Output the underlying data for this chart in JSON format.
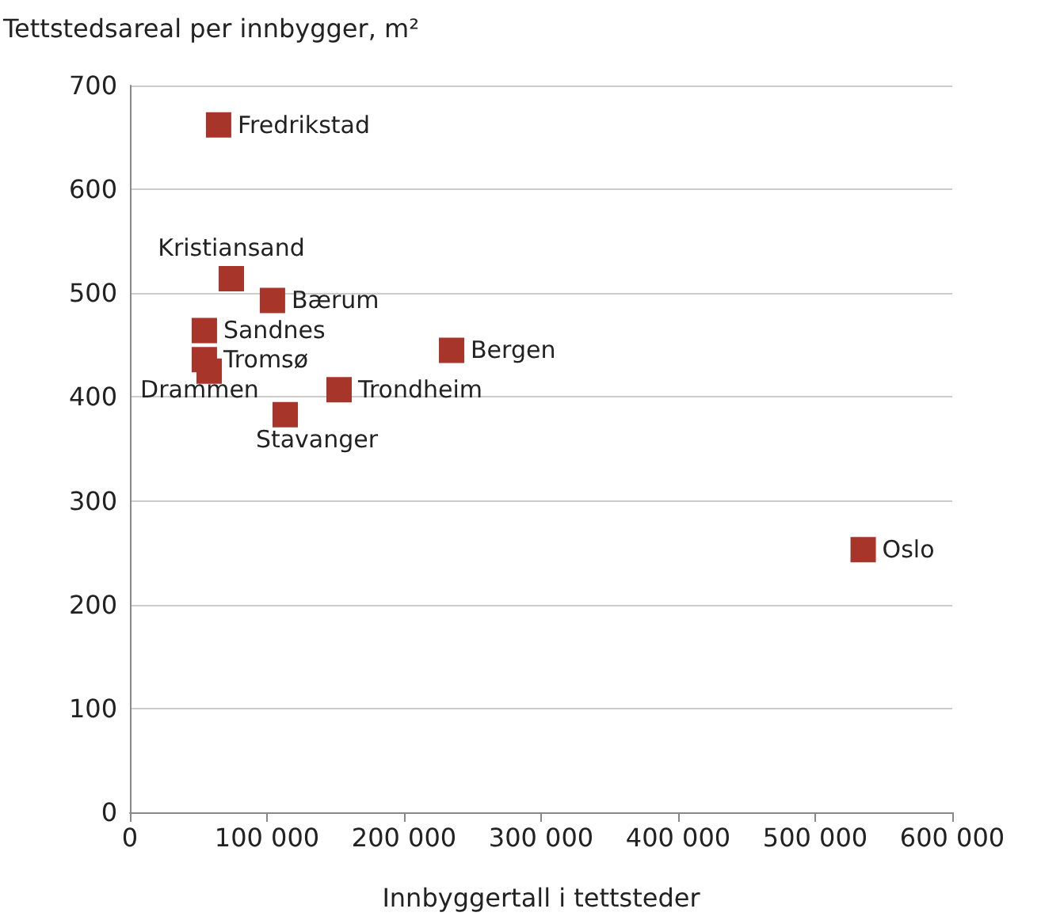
{
  "chart_data": {
    "type": "scatter",
    "ylabel": "Tettstedsareal per innbygger, m²",
    "xlabel": "Innbyggertall i tettsteder",
    "x": [
      64700,
      74000,
      104000,
      54300,
      54300,
      57800,
      234700,
      152600,
      113300,
      535000
    ],
    "values": [
      662,
      514,
      493,
      464,
      436,
      425,
      445,
      407,
      383,
      253
    ],
    "value_labels": [
      "Fredrikstad",
      "Kristiansand",
      "Bærum",
      "Sandnes",
      "Tromsø",
      "Drammen",
      "Bergen",
      "Trondheim",
      "Stavanger",
      "Oslo"
    ],
    "color": "#a8352a",
    "marker": "square",
    "xlim": [
      0,
      600000
    ],
    "xticks": [
      0,
      {
        "value": 100000,
        "label": "100 000"
      },
      {
        "value": 200000,
        "label": "200 000"
      },
      {
        "value": 300000,
        "label": "300 000"
      },
      {
        "value": 400000,
        "label": "400 000"
      },
      {
        "value": 500000,
        "label": "500 000"
      },
      {
        "value": 600000,
        "label": "600 000"
      }
    ],
    "ylim": [
      0,
      700
    ],
    "yticks": [
      0,
      100,
      200,
      300,
      400,
      500,
      600,
      700
    ],
    "grid": "y"
  }
}
